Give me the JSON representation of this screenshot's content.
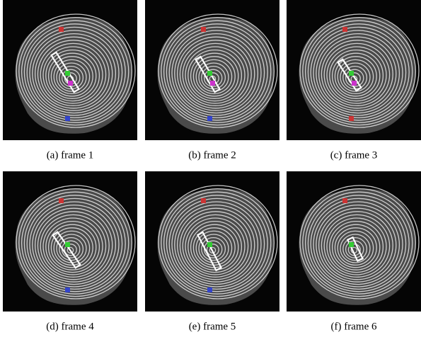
{
  "figures": [
    {
      "caption": "(a) frame 1"
    },
    {
      "caption": "(b) frame 2"
    },
    {
      "caption": "(c) frame 3"
    },
    {
      "caption": "(d) frame 4"
    },
    {
      "caption": "(e) frame 5"
    },
    {
      "caption": "(f) frame 6"
    }
  ]
}
